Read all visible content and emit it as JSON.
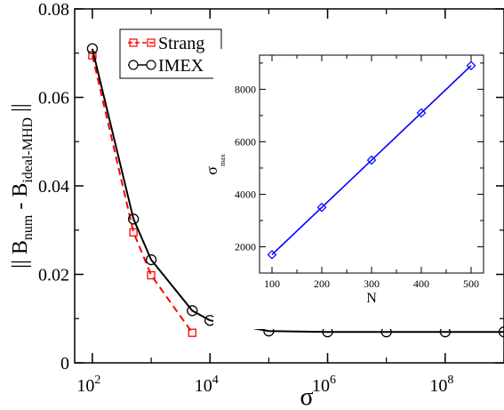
{
  "chart_data": [
    {
      "type": "line",
      "xlabel": "σ",
      "ylabel_parts": [
        "|| B",
        "num",
        " - B",
        "ideal-MHD",
        " ||"
      ],
      "xscale": "log",
      "xlim": [
        50,
        1000000000
      ],
      "ylim": [
        0,
        0.08
      ],
      "x_ticks": [
        {
          "value": 100,
          "base": "10",
          "exp": "2"
        },
        {
          "value": 10000,
          "base": "10",
          "exp": "4"
        },
        {
          "value": 1000000,
          "base": "10",
          "exp": "6"
        },
        {
          "value": 100000000,
          "base": "10",
          "exp": "8"
        }
      ],
      "y_ticks": [
        {
          "value": 0,
          "label": "0"
        },
        {
          "value": 0.02,
          "label": "0.02"
        },
        {
          "value": 0.04,
          "label": "0.04"
        },
        {
          "value": 0.06,
          "label": "0.06"
        },
        {
          "value": 0.08,
          "label": "0.08"
        }
      ],
      "legend_position": "top-left",
      "series": [
        {
          "name": "Strang",
          "color": "#ff0000",
          "marker": "square",
          "dashed": true,
          "x": [
            100,
            500,
            1000,
            5000
          ],
          "y": [
            0.0695,
            0.0295,
            0.0198,
            0.0068
          ]
        },
        {
          "name": "IMEX",
          "color": "#000000",
          "marker": "circle",
          "dashed": false,
          "x": [
            100,
            500,
            1000,
            5000,
            10000,
            100000,
            1000000,
            10000000,
            100000000,
            1000000000
          ],
          "y": [
            0.071,
            0.0325,
            0.0233,
            0.0118,
            0.0096,
            0.0072,
            0.007,
            0.007,
            0.007,
            0.007
          ]
        }
      ]
    },
    {
      "type": "line",
      "xlabel": "N",
      "ylabel": "σ",
      "ylabel_sub": "max",
      "xlim": [
        75,
        525
      ],
      "ylim": [
        1000,
        9300
      ],
      "x_ticks": [
        {
          "value": 100,
          "label": "100"
        },
        {
          "value": 200,
          "label": "200"
        },
        {
          "value": 300,
          "label": "300"
        },
        {
          "value": 400,
          "label": "400"
        },
        {
          "value": 500,
          "label": "500"
        }
      ],
      "y_ticks": [
        {
          "value": 2000,
          "label": "2000"
        },
        {
          "value": 4000,
          "label": "4000"
        },
        {
          "value": 6000,
          "label": "6000"
        },
        {
          "value": 8000,
          "label": "8000"
        }
      ],
      "series": [
        {
          "color": "#0000ff",
          "marker": "diamond",
          "x": [
            100,
            200,
            300,
            400,
            500
          ],
          "y": [
            1700,
            3500,
            5300,
            7100,
            8900
          ]
        }
      ]
    }
  ]
}
